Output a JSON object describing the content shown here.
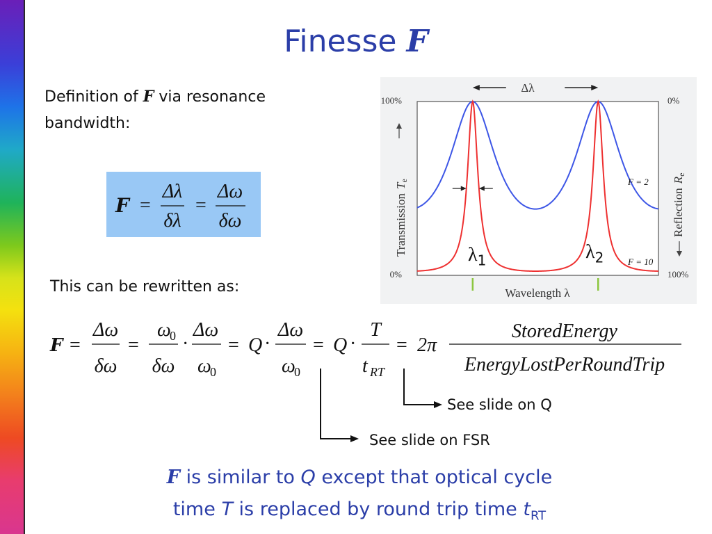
{
  "slide": {
    "title_text": "Finesse",
    "title_symbol": "F",
    "definition_prefix": "Definition of",
    "definition_symbol": "F",
    "definition_suffix": "via resonance",
    "definition_line2": "bandwidth:",
    "rewrite_label": "This can be rewritten as:",
    "note_q": "See slide on Q",
    "note_fsr": "See slide on FSR",
    "bottom_line1": {
      "sym": "F",
      "a": "is similar to",
      "q": "Q",
      "b": "except that optical cycle"
    },
    "bottom_line2": {
      "a": "time",
      "t": "T",
      "b": "is replaced by round trip time",
      "t2": "t",
      "sub": "RT"
    }
  },
  "formula1": {
    "lhs": "F",
    "n1": "Δλ",
    "d1": "δλ",
    "n2": "Δω",
    "d2": "δω"
  },
  "formula2": {
    "lhs": "F",
    "f1n": "Δω",
    "f1d": "δω",
    "f2n": "ω",
    "f2nsub": "0",
    "f2d": "δω",
    "f3n": "Δω",
    "f3d": "ω",
    "f3dsub": "0",
    "q1": "Q",
    "f4n": "Δω",
    "f4d": "ω",
    "f4dsub": "0",
    "q2": "Q",
    "f5n": "T",
    "f5d": "t",
    "f5dsub": "RT",
    "two_pi": "2π",
    "f6n": "StoredEnergy",
    "f6d": "EnergyLostPerRoundTrip"
  },
  "chart_data": {
    "type": "line",
    "xlabel": "Wavelength λ",
    "ylabel_left": "Transmission",
    "ylabel_left_sym": "T",
    "ylabel_left_sub": "e",
    "ylabel_right": "Reflection",
    "ylabel_right_sym": "R",
    "ylabel_right_sub": "e",
    "left_ticks": [
      "100%",
      "0%"
    ],
    "right_ticks": [
      "0%",
      "100%"
    ],
    "ylim": [
      0,
      100
    ],
    "peaks": [
      0.23,
      0.75
    ],
    "series": [
      {
        "name": "F = 2",
        "finesse": 2,
        "color": "#3d56e6"
      },
      {
        "name": "F = 10",
        "finesse": 10,
        "color": "#ee3030"
      }
    ],
    "annotations": {
      "fsr": "Δλ",
      "fwhm": "δλ",
      "lambda1": "λ",
      "lambda1_sub": "1",
      "lambda2": "λ",
      "lambda2_sub": "2"
    },
    "colors": {
      "axis": "#555555",
      "peak_marker": "#8cc63f",
      "background": "#f1f2f3"
    }
  }
}
